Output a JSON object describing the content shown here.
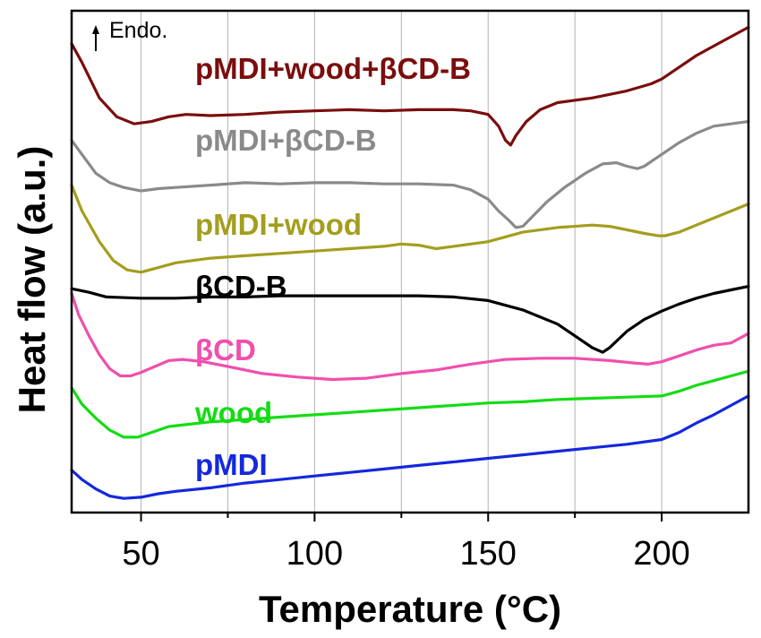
{
  "chart_data": {
    "type": "line",
    "xlabel": "Temperature (°C)",
    "ylabel": "Heat flow (a.u.)",
    "xlim": [
      30,
      225
    ],
    "xticks": [
      50,
      100,
      150,
      200
    ],
    "grid": "vertical",
    "y_ticks_shown": false,
    "annotation": "Endo.",
    "series": [
      {
        "name": "pMDI+wood+βCD-B",
        "color": "#7b0d0d",
        "points": [
          [
            30,
            12.9
          ],
          [
            33,
            12.1
          ],
          [
            38,
            10.6
          ],
          [
            43,
            9.8
          ],
          [
            48,
            9.5
          ],
          [
            53,
            9.6
          ],
          [
            58,
            9.8
          ],
          [
            63,
            9.9
          ],
          [
            70,
            9.85
          ],
          [
            80,
            9.9
          ],
          [
            90,
            10.0
          ],
          [
            100,
            10.05
          ],
          [
            110,
            10.1
          ],
          [
            120,
            10.05
          ],
          [
            130,
            10.1
          ],
          [
            140,
            10.1
          ],
          [
            145,
            10.05
          ],
          [
            150,
            9.9
          ],
          [
            153,
            9.4
          ],
          [
            155,
            8.8
          ],
          [
            156.5,
            8.6
          ],
          [
            158,
            9.0
          ],
          [
            161,
            9.6
          ],
          [
            165,
            10.1
          ],
          [
            170,
            10.4
          ],
          [
            180,
            10.6
          ],
          [
            190,
            10.9
          ],
          [
            197,
            11.2
          ],
          [
            200,
            11.4
          ],
          [
            205,
            11.9
          ],
          [
            210,
            12.4
          ],
          [
            215,
            12.8
          ],
          [
            220,
            13.2
          ],
          [
            225,
            13.6
          ]
        ]
      },
      {
        "name": "pMDI+βCD-B",
        "color": "#8a8a8a",
        "points": [
          [
            30,
            8.8
          ],
          [
            33,
            8.2
          ],
          [
            37,
            7.4
          ],
          [
            41,
            7.0
          ],
          [
            45,
            6.8
          ],
          [
            50,
            6.65
          ],
          [
            55,
            6.75
          ],
          [
            60,
            6.8
          ],
          [
            70,
            6.9
          ],
          [
            80,
            7.0
          ],
          [
            90,
            6.95
          ],
          [
            100,
            7.0
          ],
          [
            110,
            7.0
          ],
          [
            120,
            6.95
          ],
          [
            130,
            6.95
          ],
          [
            140,
            6.9
          ],
          [
            145,
            6.7
          ],
          [
            150,
            6.3
          ],
          [
            153,
            5.8
          ],
          [
            156,
            5.4
          ],
          [
            158,
            5.1
          ],
          [
            160,
            5.15
          ],
          [
            163,
            5.6
          ],
          [
            167,
            6.2
          ],
          [
            172,
            6.8
          ],
          [
            178,
            7.4
          ],
          [
            183,
            7.8
          ],
          [
            187,
            7.85
          ],
          [
            190,
            7.7
          ],
          [
            193,
            7.6
          ],
          [
            195,
            7.7
          ],
          [
            198,
            8.0
          ],
          [
            201,
            8.3
          ],
          [
            205,
            8.7
          ],
          [
            210,
            9.1
          ],
          [
            215,
            9.4
          ],
          [
            220,
            9.5
          ],
          [
            225,
            9.6
          ]
        ]
      },
      {
        "name": "pMDI+wood",
        "color": "#a39e1e",
        "points": [
          [
            30,
            6.9
          ],
          [
            33,
            5.8
          ],
          [
            38,
            4.5
          ],
          [
            42,
            3.7
          ],
          [
            46,
            3.3
          ],
          [
            50,
            3.2
          ],
          [
            55,
            3.4
          ],
          [
            60,
            3.6
          ],
          [
            65,
            3.7
          ],
          [
            70,
            3.8
          ],
          [
            80,
            3.9
          ],
          [
            90,
            4.0
          ],
          [
            100,
            4.1
          ],
          [
            110,
            4.2
          ],
          [
            120,
            4.3
          ],
          [
            125,
            4.4
          ],
          [
            130,
            4.35
          ],
          [
            135,
            4.2
          ],
          [
            140,
            4.3
          ],
          [
            150,
            4.5
          ],
          [
            160,
            4.9
          ],
          [
            170,
            5.1
          ],
          [
            180,
            5.2
          ],
          [
            185,
            5.15
          ],
          [
            190,
            5.0
          ],
          [
            195,
            4.85
          ],
          [
            199,
            4.75
          ],
          [
            201,
            4.75
          ],
          [
            205,
            4.9
          ],
          [
            210,
            5.2
          ],
          [
            215,
            5.5
          ],
          [
            220,
            5.8
          ],
          [
            225,
            6.1
          ]
        ]
      },
      {
        "name": "βCD-B",
        "color": "#000000",
        "points": [
          [
            30,
            2.5
          ],
          [
            35,
            2.35
          ],
          [
            40,
            2.15
          ],
          [
            50,
            2.1
          ],
          [
            60,
            2.1
          ],
          [
            70,
            2.15
          ],
          [
            80,
            2.15
          ],
          [
            90,
            2.2
          ],
          [
            100,
            2.2
          ],
          [
            110,
            2.2
          ],
          [
            120,
            2.2
          ],
          [
            130,
            2.2
          ],
          [
            140,
            2.15
          ],
          [
            150,
            2.0
          ],
          [
            160,
            1.6
          ],
          [
            170,
            1.0
          ],
          [
            176,
            0.4
          ],
          [
            180,
            0.0
          ],
          [
            183,
            -0.2
          ],
          [
            185,
            0.0
          ],
          [
            190,
            0.7
          ],
          [
            195,
            1.2
          ],
          [
            200,
            1.55
          ],
          [
            205,
            1.85
          ],
          [
            210,
            2.1
          ],
          [
            215,
            2.3
          ],
          [
            220,
            2.45
          ],
          [
            225,
            2.6
          ]
        ]
      },
      {
        "name": "βCD",
        "color": "#f04fad",
        "points": [
          [
            30,
            2.3
          ],
          [
            32,
            1.4
          ],
          [
            35,
            0.5
          ],
          [
            38,
            -0.3
          ],
          [
            41,
            -0.9
          ],
          [
            44,
            -1.2
          ],
          [
            47,
            -1.2
          ],
          [
            50,
            -1.05
          ],
          [
            54,
            -0.8
          ],
          [
            58,
            -0.55
          ],
          [
            62,
            -0.5
          ],
          [
            68,
            -0.6
          ],
          [
            75,
            -0.8
          ],
          [
            85,
            -1.1
          ],
          [
            95,
            -1.25
          ],
          [
            105,
            -1.35
          ],
          [
            115,
            -1.3
          ],
          [
            125,
            -1.1
          ],
          [
            135,
            -0.95
          ],
          [
            145,
            -0.7
          ],
          [
            155,
            -0.5
          ],
          [
            165,
            -0.45
          ],
          [
            175,
            -0.45
          ],
          [
            185,
            -0.55
          ],
          [
            192,
            -0.65
          ],
          [
            196,
            -0.7
          ],
          [
            200,
            -0.6
          ],
          [
            205,
            -0.35
          ],
          [
            210,
            -0.1
          ],
          [
            215,
            0.1
          ],
          [
            220,
            0.2
          ],
          [
            225,
            0.6
          ]
        ]
      },
      {
        "name": "wood",
        "color": "#14dc14",
        "points": [
          [
            30,
            -1.7
          ],
          [
            33,
            -2.4
          ],
          [
            37,
            -3.0
          ],
          [
            41,
            -3.5
          ],
          [
            45,
            -3.8
          ],
          [
            49,
            -3.8
          ],
          [
            53,
            -3.6
          ],
          [
            58,
            -3.35
          ],
          [
            64,
            -3.25
          ],
          [
            70,
            -3.15
          ],
          [
            80,
            -3.05
          ],
          [
            90,
            -2.95
          ],
          [
            100,
            -2.85
          ],
          [
            110,
            -2.75
          ],
          [
            120,
            -2.65
          ],
          [
            130,
            -2.55
          ],
          [
            140,
            -2.45
          ],
          [
            150,
            -2.35
          ],
          [
            160,
            -2.3
          ],
          [
            170,
            -2.2
          ],
          [
            180,
            -2.15
          ],
          [
            190,
            -2.1
          ],
          [
            200,
            -2.05
          ],
          [
            205,
            -1.85
          ],
          [
            210,
            -1.6
          ],
          [
            215,
            -1.4
          ],
          [
            220,
            -1.2
          ],
          [
            225,
            -1.0
          ]
        ]
      },
      {
        "name": "pMDI",
        "color": "#1428dc",
        "points": [
          [
            30,
            -5.2
          ],
          [
            33,
            -5.6
          ],
          [
            37,
            -6.0
          ],
          [
            41,
            -6.3
          ],
          [
            45,
            -6.4
          ],
          [
            50,
            -6.35
          ],
          [
            55,
            -6.2
          ],
          [
            60,
            -6.1
          ],
          [
            70,
            -5.95
          ],
          [
            80,
            -5.75
          ],
          [
            90,
            -5.6
          ],
          [
            100,
            -5.45
          ],
          [
            110,
            -5.3
          ],
          [
            120,
            -5.15
          ],
          [
            130,
            -5.0
          ],
          [
            140,
            -4.85
          ],
          [
            150,
            -4.7
          ],
          [
            160,
            -4.55
          ],
          [
            170,
            -4.4
          ],
          [
            180,
            -4.25
          ],
          [
            190,
            -4.1
          ],
          [
            200,
            -3.9
          ],
          [
            205,
            -3.6
          ],
          [
            210,
            -3.2
          ],
          [
            215,
            -2.85
          ],
          [
            220,
            -2.45
          ],
          [
            225,
            -2.05
          ]
        ]
      }
    ],
    "series_label_text": [
      "pMDI+wood+βCD-B",
      "pMDI+βCD-B",
      "pMDI+wood",
      "βCD-B",
      "βCD",
      "wood",
      "pMDI"
    ]
  }
}
